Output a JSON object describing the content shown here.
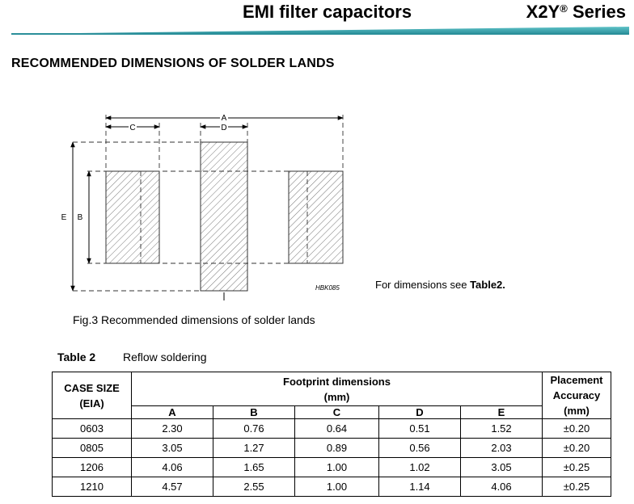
{
  "header": {
    "title": "EMI filter capacitors",
    "series": "X2Y",
    "series_mark": "®",
    "series_suffix": " Series"
  },
  "section_title": "RECOMMENDED DIMENSIONS OF SOLDER LANDS",
  "diagram": {
    "labels": {
      "a": "A",
      "b": "B",
      "c": "C",
      "d": "D",
      "e": "E"
    },
    "code": "HBK085"
  },
  "note": {
    "prefix": "For dimensions see ",
    "ref": "Table2."
  },
  "caption": "Fig.3 Recommended dimensions of solder lands",
  "table": {
    "label": "Table 2",
    "subtitle": "Reflow soldering",
    "case_header": "CASE SIZE\n(EIA)",
    "footprint_header": "Footprint dimensions\n(mm)",
    "placement_header": "Placement\nAccuracy\n(mm)",
    "columns": [
      "A",
      "B",
      "C",
      "D",
      "E"
    ],
    "rows": [
      [
        "0603",
        "2.30",
        "0.76",
        "0.64",
        "0.51",
        "1.52",
        "±0.20"
      ],
      [
        "0805",
        "3.05",
        "1.27",
        "0.89",
        "0.56",
        "2.03",
        "±0.20"
      ],
      [
        "1206",
        "4.06",
        "1.65",
        "1.00",
        "1.02",
        "3.05",
        "±0.25"
      ],
      [
        "1210",
        "4.57",
        "2.55",
        "1.00",
        "1.14",
        "4.06",
        "±0.25"
      ]
    ]
  }
}
